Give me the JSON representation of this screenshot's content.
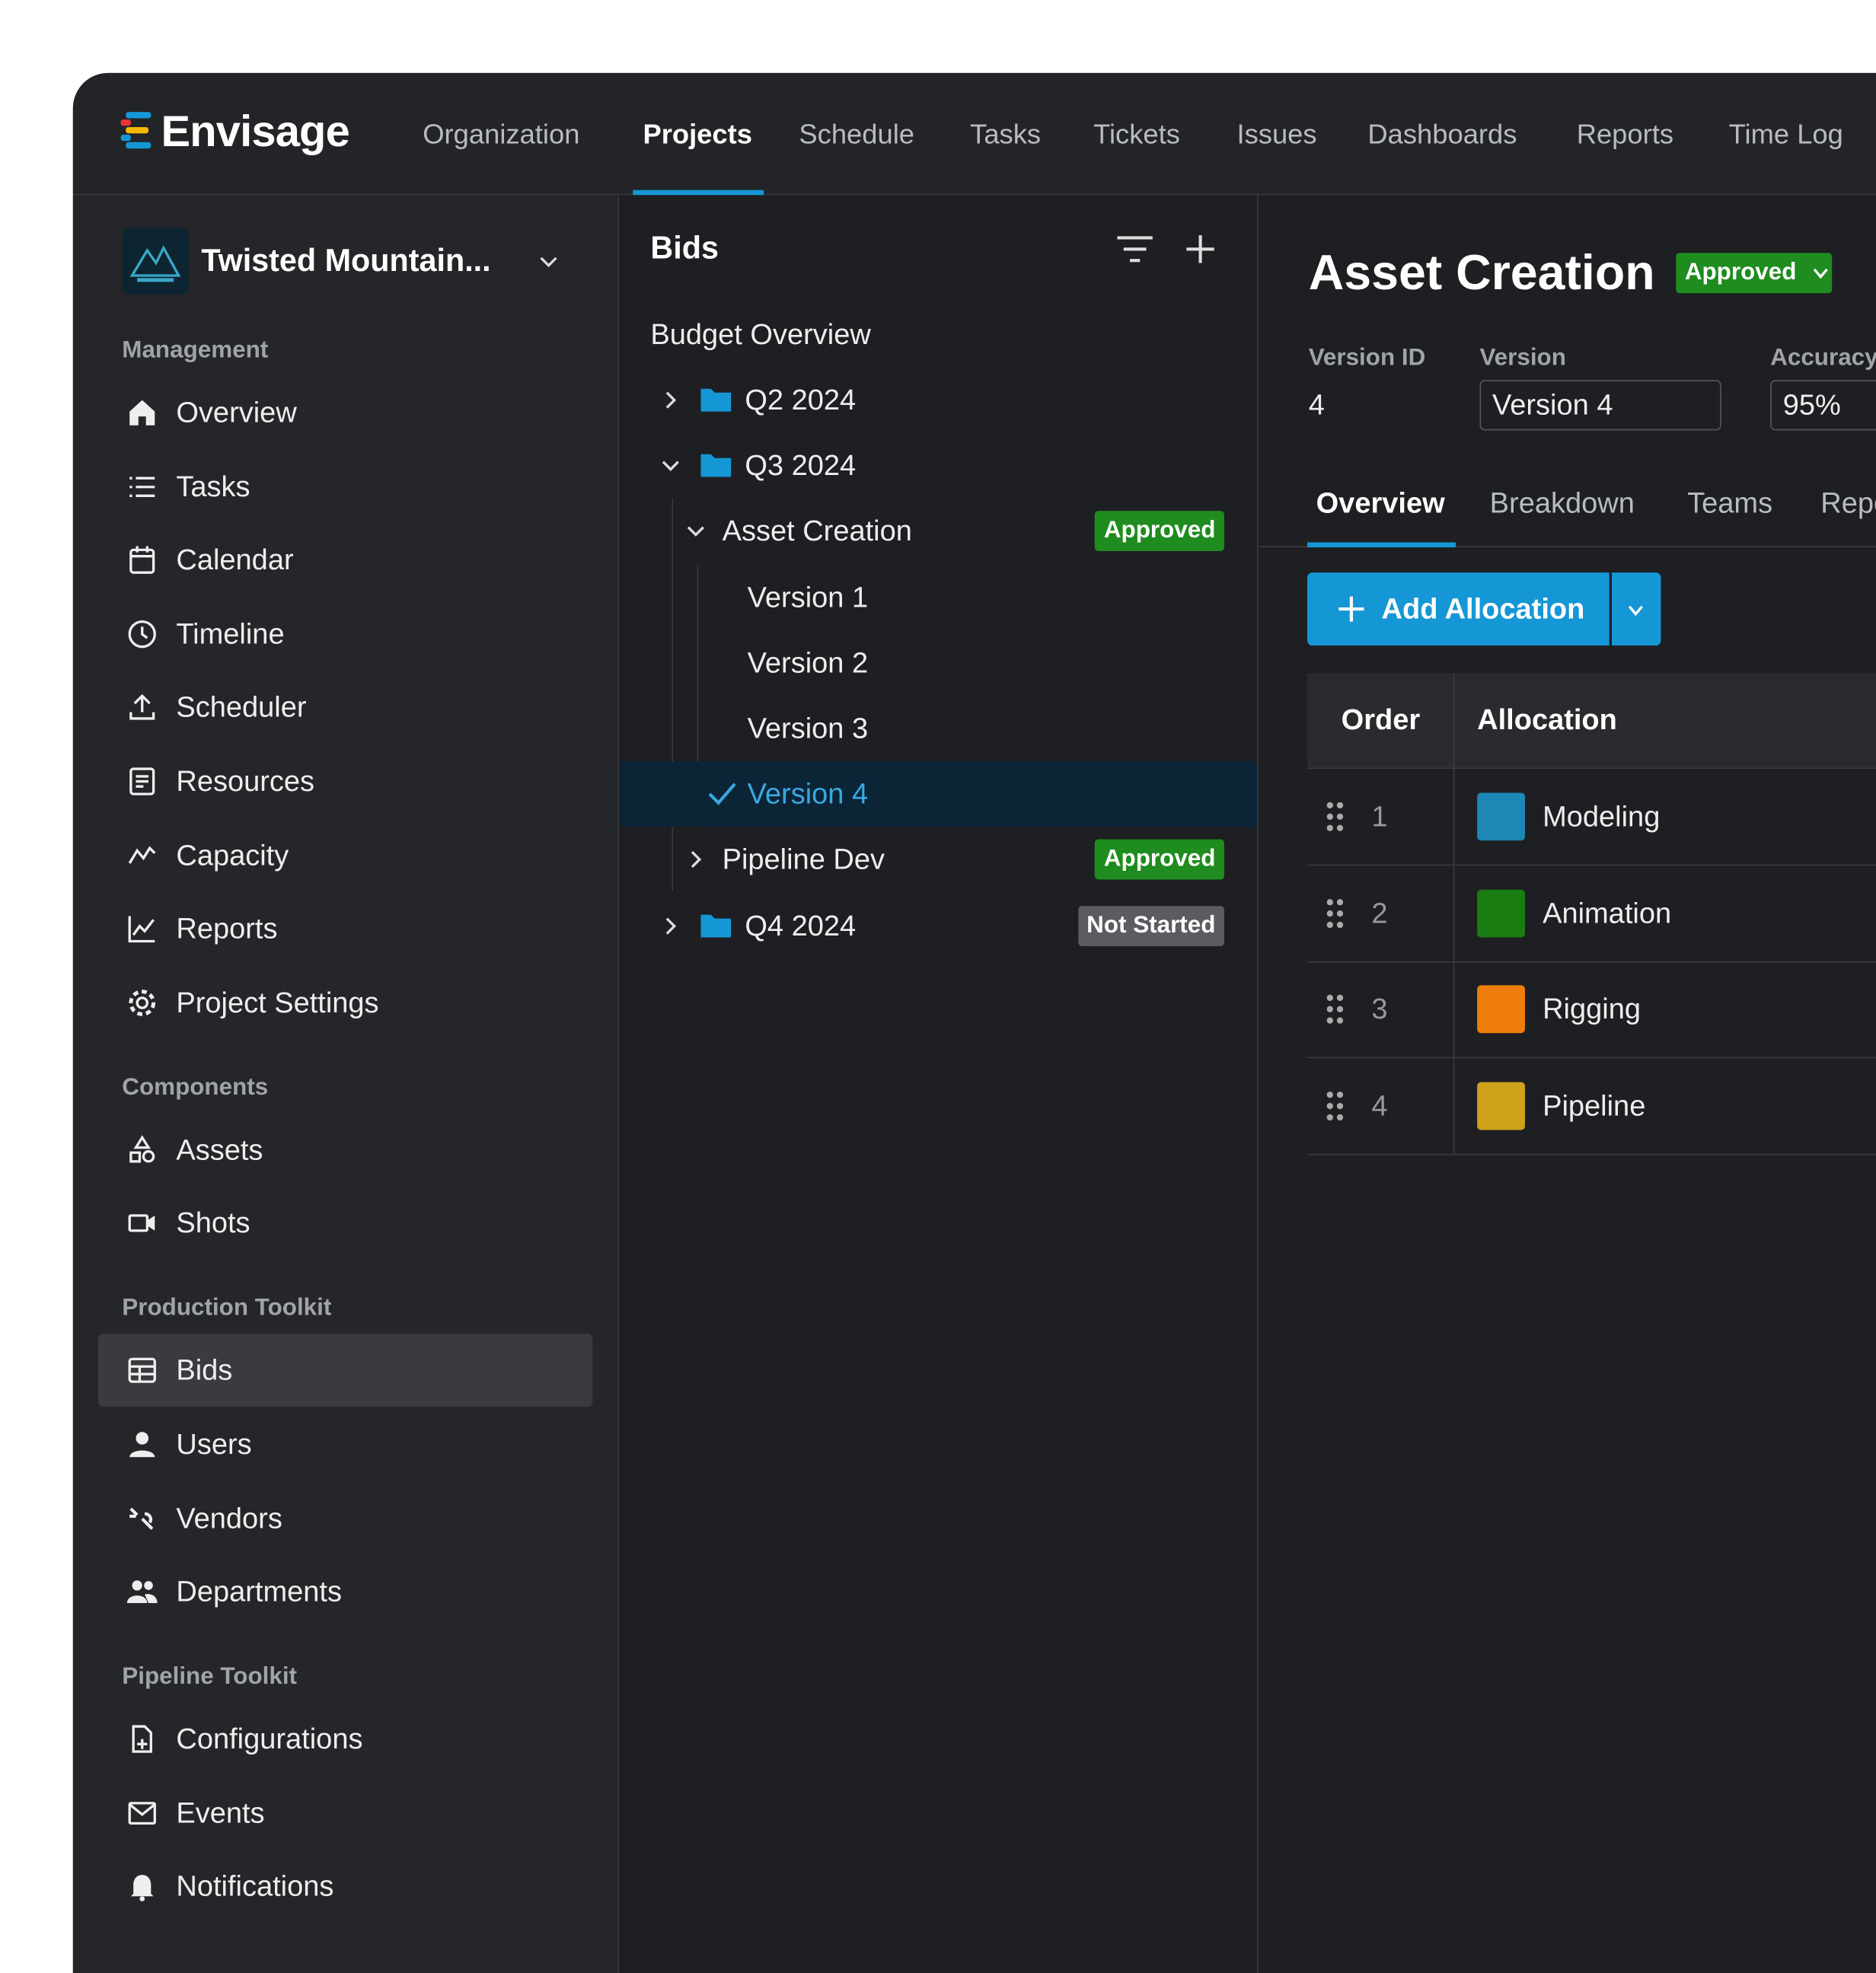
{
  "header": {
    "logo": "Envisage",
    "nav": [
      "Organization",
      "Projects",
      "Schedule",
      "Tasks",
      "Tickets",
      "Issues",
      "Dashboards",
      "Reports",
      "Time Log"
    ]
  },
  "sidebar": {
    "project": "Twisted Mountain...",
    "sections": [
      {
        "title": "Management",
        "items": [
          "Overview",
          "Tasks",
          "Calendar",
          "Timeline",
          "Scheduler",
          "Resources",
          "Capacity",
          "Reports",
          "Project Settings"
        ]
      },
      {
        "title": "Components",
        "items": [
          "Assets",
          "Shots"
        ]
      },
      {
        "title": "Production Toolkit",
        "items": [
          "Bids",
          "Users",
          "Vendors",
          "Departments"
        ]
      },
      {
        "title": "Pipeline Toolkit",
        "items": [
          "Configurations",
          "Events",
          "Notifications"
        ]
      }
    ]
  },
  "tree": {
    "title": "Bids",
    "root": "Budget Overview",
    "nodes": [
      {
        "label": "Q2 2024",
        "expanded": false
      },
      {
        "label": "Q3 2024",
        "expanded": true
      },
      {
        "label": "Asset Creation",
        "status": "Approved",
        "expanded": true
      },
      {
        "label": "Version 1"
      },
      {
        "label": "Version 2"
      },
      {
        "label": "Version 3"
      },
      {
        "label": "Version 4",
        "selected": true
      },
      {
        "label": "Pipeline Dev",
        "status": "Approved",
        "expanded": false
      },
      {
        "label": "Q4 2024",
        "status": "Not Started",
        "expanded": false
      }
    ]
  },
  "detail": {
    "title": "Asset Creation",
    "status": "Approved",
    "fields": [
      {
        "label": "Version ID",
        "value": "4"
      },
      {
        "label": "Version",
        "value": "Version 4"
      },
      {
        "label": "Accuracy",
        "value": "95%"
      }
    ],
    "tabs": [
      "Overview",
      "Breakdown",
      "Teams",
      "Reports"
    ],
    "button": "Add Allocation",
    "table": {
      "columns": [
        "Order",
        "Allocation"
      ],
      "rows": [
        {
          "order": "1",
          "allocation": "Modeling",
          "color": "#1d87b5"
        },
        {
          "order": "2",
          "allocation": "Animation",
          "color": "#1a7d12"
        },
        {
          "order": "3",
          "allocation": "Rigging",
          "color": "#ef7d0b"
        },
        {
          "order": "4",
          "allocation": "Pipeline",
          "color": "#cfa21c"
        }
      ]
    }
  }
}
